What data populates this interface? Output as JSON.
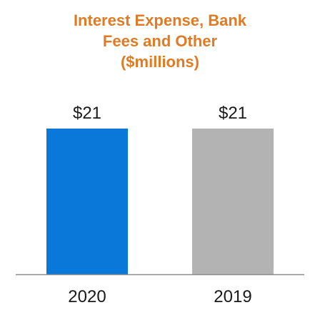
{
  "chart_data": {
    "type": "bar",
    "title_lines": [
      "Interest Expense, Bank",
      "Fees and Other",
      "($millions)"
    ],
    "categories": [
      "2020",
      "2019"
    ],
    "values": [
      21,
      21
    ],
    "value_labels": [
      "$21",
      "$21"
    ],
    "colors": [
      "#0a78d8",
      "#b3b3b3"
    ],
    "ylim": [
      0,
      21
    ],
    "grid": false,
    "legend": "none"
  }
}
